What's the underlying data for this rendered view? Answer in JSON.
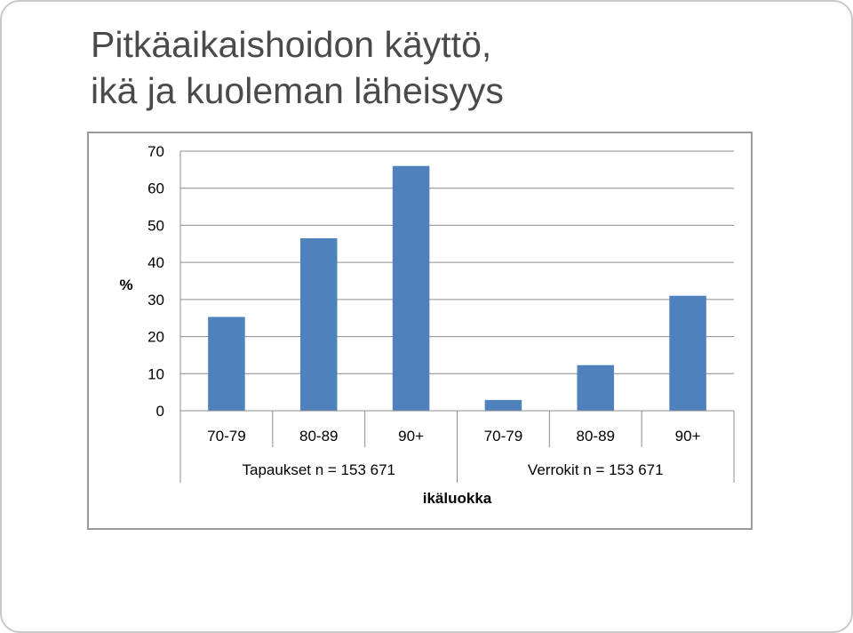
{
  "title": {
    "line1": "Pitkäaikaishoidon käyttö,",
    "line2": "ikä ja kuoleman läheisyys"
  },
  "chart_data": {
    "type": "bar",
    "groups": [
      {
        "label": "Tapaukset n = 153 671",
        "categories": [
          "70-79",
          "80-89",
          "90+"
        ],
        "values": [
          25.3,
          46.5,
          66
        ]
      },
      {
        "label": "Verrokit n = 153 671",
        "categories": [
          "70-79",
          "80-89",
          "90+"
        ],
        "values": [
          2.9,
          12.3,
          31
        ]
      }
    ],
    "ylabel": "%",
    "xlabel": "ikäluokka",
    "ylim": [
      0,
      70
    ],
    "yticks": [
      0,
      10,
      20,
      30,
      40,
      50,
      60,
      70
    ],
    "grid": true,
    "bar_color": "#4f81bd"
  }
}
